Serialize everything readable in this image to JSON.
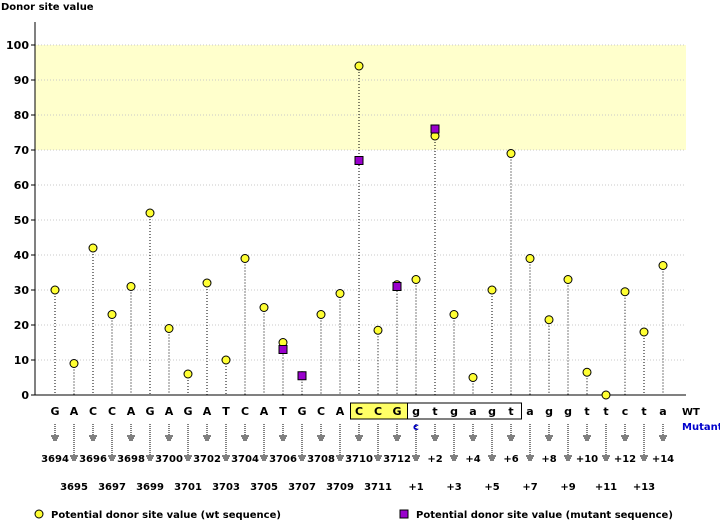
{
  "chart_data": {
    "type": "lollipop",
    "title": "Donor site value",
    "ylim": [
      0,
      100
    ],
    "yticks": [
      0,
      10,
      20,
      30,
      40,
      50,
      60,
      70,
      80,
      90,
      100
    ],
    "highlight_band": [
      70,
      100
    ],
    "sequence_row_label": "WT",
    "mutant_row_label": "Mutant",
    "mutant_base": "c",
    "mutant_position_index": 19,
    "exon_box_indices": [
      16,
      17,
      18
    ],
    "intron_box_indices": [
      19,
      20,
      21,
      22,
      23,
      24
    ],
    "positions": [
      {
        "base": "G",
        "label": "3694",
        "wt": 30
      },
      {
        "base": "A",
        "label": "3695",
        "wt": 9
      },
      {
        "base": "C",
        "label": "3696",
        "wt": 42
      },
      {
        "base": "C",
        "label": "3697",
        "wt": 23
      },
      {
        "base": "A",
        "label": "3698",
        "wt": 31
      },
      {
        "base": "G",
        "label": "3699",
        "wt": 52
      },
      {
        "base": "A",
        "label": "3700",
        "wt": 19
      },
      {
        "base": "G",
        "label": "3701",
        "wt": 6
      },
      {
        "base": "A",
        "label": "3702",
        "wt": 32
      },
      {
        "base": "T",
        "label": "3703",
        "wt": 10
      },
      {
        "base": "C",
        "label": "3704",
        "wt": 39
      },
      {
        "base": "A",
        "label": "3705",
        "wt": 25
      },
      {
        "base": "T",
        "label": "3706",
        "wt": 15,
        "mutant": 13
      },
      {
        "base": "G",
        "label": "3707",
        "wt": 5.5,
        "mutant": 5.5
      },
      {
        "base": "C",
        "label": "3708",
        "wt": 23
      },
      {
        "base": "A",
        "label": "3709",
        "wt": 29
      },
      {
        "base": "C",
        "label": "3710",
        "wt": 94,
        "mutant": 67
      },
      {
        "base": "C",
        "label": "3711",
        "wt": 18.5
      },
      {
        "base": "G",
        "label": "3712",
        "wt": 31.5,
        "mutant": 31
      },
      {
        "base": "g",
        "label": "+1",
        "wt": 33
      },
      {
        "base": "t",
        "label": "+2",
        "wt": 74,
        "mutant": 76
      },
      {
        "base": "g",
        "label": "+3",
        "wt": 23
      },
      {
        "base": "a",
        "label": "+4",
        "wt": 5
      },
      {
        "base": "g",
        "label": "+5",
        "wt": 30
      },
      {
        "base": "t",
        "label": "+6",
        "wt": 69
      },
      {
        "base": "a",
        "label": "+7",
        "wt": 39
      },
      {
        "base": "g",
        "label": "+8",
        "wt": 21.5
      },
      {
        "base": "g",
        "label": "+9",
        "wt": 33
      },
      {
        "base": "t",
        "label": "+10",
        "wt": 6.5
      },
      {
        "base": "t",
        "label": "+11",
        "wt": 0
      },
      {
        "base": "c",
        "label": "+12",
        "wt": 29.5
      },
      {
        "base": "t",
        "label": "+13",
        "wt": 18
      },
      {
        "base": "a",
        "label": "+14",
        "wt": 37
      }
    ],
    "legend": [
      {
        "name": "Potential donor site value (wt sequence)",
        "marker": "circle",
        "color": "#ffff33"
      },
      {
        "name": "Potential donor site value (mutant sequence)",
        "marker": "square",
        "color": "#9900cc"
      }
    ]
  },
  "colors": {
    "band": "#ffffcc",
    "wt_marker": "#ffff33",
    "mutant_marker": "#9900cc",
    "exon_box": "#ffff66",
    "mutant_text": "#0000cc",
    "axis": "#000000"
  }
}
